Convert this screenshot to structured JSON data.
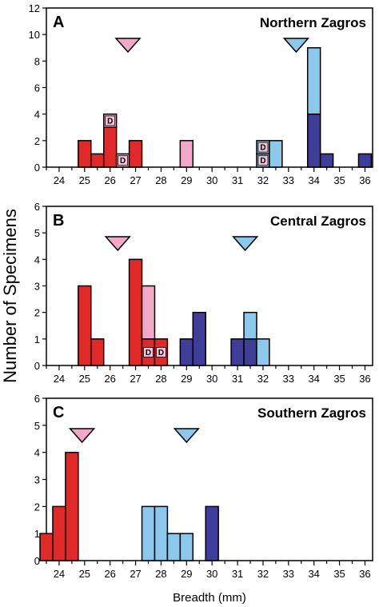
{
  "colors": {
    "red": "#e02a2a",
    "pink": "#f2a8c8",
    "light_blue": "#8cc8ec",
    "dark_blue": "#3e3d98",
    "outline": "#000000"
  },
  "chart_data": {
    "type": "bar",
    "ylabel": "Number of Specimens",
    "xlabel": "Breadth (mm)",
    "x_ticks": [
      24,
      25,
      26,
      27,
      28,
      29,
      30,
      31,
      32,
      33,
      34,
      35,
      36
    ],
    "panels": [
      {
        "letter": "A",
        "title": "Northern Zagros",
        "ylim": [
          0,
          12
        ],
        "y_ticks": [
          0,
          2,
          4,
          6,
          8,
          10,
          12
        ],
        "xlim": [
          23.5,
          36.3
        ],
        "bars": [
          {
            "x": 25.0,
            "segments": [
              {
                "color": "red",
                "count": 2
              }
            ]
          },
          {
            "x": 25.5,
            "segments": [
              {
                "color": "red",
                "count": 1
              }
            ]
          },
          {
            "x": 26.0,
            "segments": [
              {
                "color": "red",
                "count": 3
              },
              {
                "color": "pink",
                "count": 1,
                "label": "D"
              }
            ]
          },
          {
            "x": 26.5,
            "segments": [
              {
                "color": "pink",
                "count": 1,
                "label": "D"
              }
            ]
          },
          {
            "x": 27.0,
            "segments": [
              {
                "color": "red",
                "count": 2
              }
            ]
          },
          {
            "x": 29.0,
            "segments": [
              {
                "color": "pink",
                "count": 2
              }
            ]
          },
          {
            "x": 32.0,
            "segments": [
              {
                "color": "light_blue",
                "count": 1,
                "label": "D"
              },
              {
                "color": "light_blue",
                "count": 1,
                "label": "D"
              }
            ]
          },
          {
            "x": 32.5,
            "segments": [
              {
                "color": "light_blue",
                "count": 2
              }
            ]
          },
          {
            "x": 34.0,
            "segments": [
              {
                "color": "dark_blue",
                "count": 4
              },
              {
                "color": "light_blue",
                "count": 5
              }
            ]
          },
          {
            "x": 34.5,
            "segments": [
              {
                "color": "dark_blue",
                "count": 1
              }
            ]
          },
          {
            "x": 36.0,
            "segments": [
              {
                "color": "dark_blue",
                "count": 1
              }
            ]
          }
        ],
        "markers": [
          {
            "x": 26.7,
            "color": "pink"
          },
          {
            "x": 33.3,
            "color": "light_blue"
          }
        ]
      },
      {
        "letter": "B",
        "title": "Central Zagros",
        "ylim": [
          0,
          6
        ],
        "y_ticks": [
          0,
          1,
          2,
          3,
          4,
          5,
          6
        ],
        "xlim": [
          23.5,
          36.3
        ],
        "bars": [
          {
            "x": 25.0,
            "segments": [
              {
                "color": "red",
                "count": 3
              }
            ]
          },
          {
            "x": 25.5,
            "segments": [
              {
                "color": "red",
                "count": 1
              }
            ]
          },
          {
            "x": 27.0,
            "segments": [
              {
                "color": "red",
                "count": 4
              }
            ]
          },
          {
            "x": 27.5,
            "segments": [
              {
                "color": "red",
                "count": 1,
                "label": "D"
              },
              {
                "color": "pink",
                "count": 2
              }
            ]
          },
          {
            "x": 28.0,
            "segments": [
              {
                "color": "red",
                "count": 1,
                "label": "D"
              }
            ]
          },
          {
            "x": 29.0,
            "segments": [
              {
                "color": "dark_blue",
                "count": 1
              }
            ]
          },
          {
            "x": 29.5,
            "segments": [
              {
                "color": "dark_blue",
                "count": 2
              }
            ]
          },
          {
            "x": 31.0,
            "segments": [
              {
                "color": "dark_blue",
                "count": 1
              }
            ]
          },
          {
            "x": 31.5,
            "segments": [
              {
                "color": "dark_blue",
                "count": 1
              },
              {
                "color": "light_blue",
                "count": 1
              }
            ]
          },
          {
            "x": 32.0,
            "segments": [
              {
                "color": "light_blue",
                "count": 1
              }
            ]
          }
        ],
        "markers": [
          {
            "x": 26.3,
            "color": "pink"
          },
          {
            "x": 31.3,
            "color": "light_blue"
          }
        ]
      },
      {
        "letter": "C",
        "title": "Southern Zagros",
        "ylim": [
          0,
          6
        ],
        "y_ticks": [
          0,
          1,
          2,
          3,
          4,
          5,
          6
        ],
        "xlim": [
          23.5,
          36.3
        ],
        "bars": [
          {
            "x": 23.5,
            "segments": [
              {
                "color": "red",
                "count": 1
              }
            ]
          },
          {
            "x": 24.0,
            "segments": [
              {
                "color": "red",
                "count": 2
              }
            ]
          },
          {
            "x": 24.5,
            "segments": [
              {
                "color": "red",
                "count": 4
              }
            ]
          },
          {
            "x": 27.5,
            "segments": [
              {
                "color": "light_blue",
                "count": 2
              }
            ]
          },
          {
            "x": 28.0,
            "segments": [
              {
                "color": "light_blue",
                "count": 2
              }
            ]
          },
          {
            "x": 28.5,
            "segments": [
              {
                "color": "light_blue",
                "count": 1
              }
            ]
          },
          {
            "x": 29.0,
            "segments": [
              {
                "color": "light_blue",
                "count": 1
              }
            ]
          },
          {
            "x": 30.0,
            "segments": [
              {
                "color": "dark_blue",
                "count": 2
              }
            ]
          }
        ],
        "markers": [
          {
            "x": 24.9,
            "color": "pink"
          },
          {
            "x": 29.0,
            "color": "light_blue"
          }
        ]
      }
    ]
  }
}
